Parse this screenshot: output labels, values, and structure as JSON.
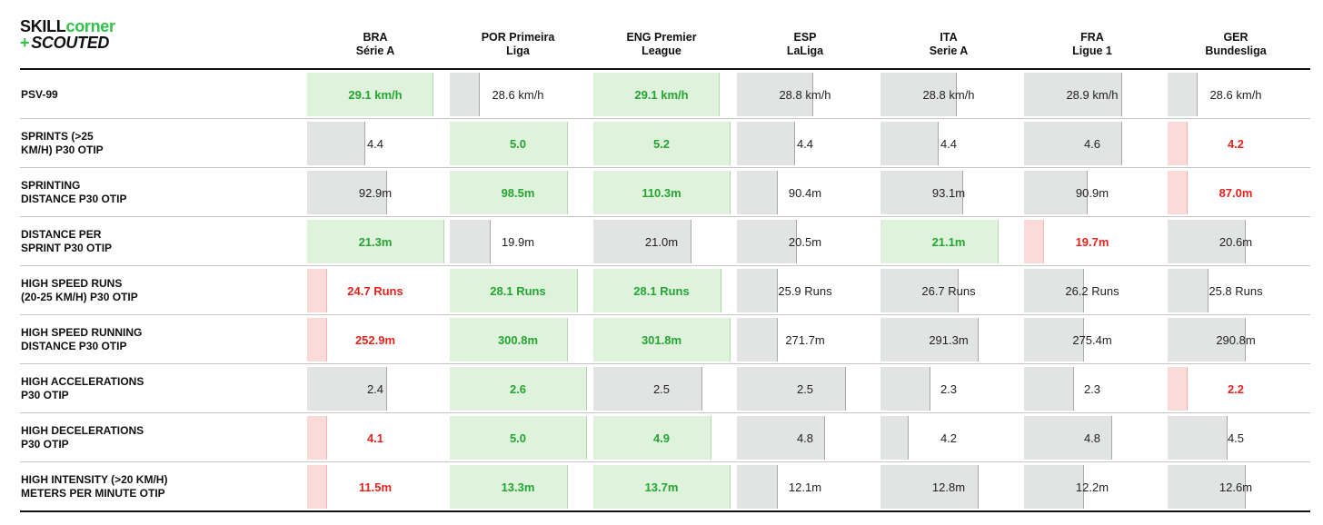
{
  "logo": {
    "line1_a": "SKILL",
    "line1_b": "corner",
    "line2_plus": "+",
    "line2_b": "SCOUTED"
  },
  "columns": [
    {
      "line1": "BRA",
      "line2": "Série A"
    },
    {
      "line1": "POR Primeira",
      "line2": "Liga"
    },
    {
      "line1": "ENG Premier",
      "line2": "League"
    },
    {
      "line1": "ESP",
      "line2": "LaLiga"
    },
    {
      "line1": "ITA",
      "line2": "Serie A"
    },
    {
      "line1": "FRA",
      "line2": "Ligue 1"
    },
    {
      "line1": "GER",
      "line2": "Bundesliga"
    }
  ],
  "colors": {
    "green_text": "#25a532",
    "red_text": "#e3231e",
    "green_fill": "#def2dc",
    "red_fill": "#fbdada",
    "grey_fill": "#e2e3e3"
  },
  "chart_data": {
    "type": "table",
    "note_legend": "green = highest values, red = lowest value, grey = others",
    "rows": [
      {
        "label_lines": [
          "PSV-99"
        ],
        "cells": [
          {
            "text": "29.1 km/h",
            "value": 29.1,
            "level": 0.92,
            "status": "green"
          },
          {
            "text": "28.6 km/h",
            "value": 28.6,
            "level": 0.21,
            "status": "grey"
          },
          {
            "text": "29.1 km/h",
            "value": 29.1,
            "level": 0.92,
            "status": "green"
          },
          {
            "text": "28.8 km/h",
            "value": 28.8,
            "level": 0.55,
            "status": "grey"
          },
          {
            "text": "28.8 km/h",
            "value": 28.8,
            "level": 0.55,
            "status": "grey"
          },
          {
            "text": "28.9 km/h",
            "value": 28.9,
            "level": 0.71,
            "status": "grey"
          },
          {
            "text": "28.6 km/h",
            "value": 28.6,
            "level": 0.21,
            "status": "grey"
          }
        ]
      },
      {
        "label_lines": [
          "SPRINTS (>25",
          "KM/H) P30 OTIP"
        ],
        "cells": [
          {
            "text": "4.4",
            "value": 4.4,
            "level": 0.42,
            "status": "grey"
          },
          {
            "text": "5.0",
            "value": 5.0,
            "level": 0.86,
            "status": "green"
          },
          {
            "text": "5.2",
            "value": 5.2,
            "level": 1.0,
            "status": "green"
          },
          {
            "text": "4.4",
            "value": 4.4,
            "level": 0.42,
            "status": "grey"
          },
          {
            "text": "4.4",
            "value": 4.4,
            "level": 0.42,
            "status": "grey"
          },
          {
            "text": "4.6",
            "value": 4.6,
            "level": 0.71,
            "status": "grey"
          },
          {
            "text": "4.2",
            "value": 4.2,
            "level": 0.14,
            "status": "red"
          }
        ]
      },
      {
        "label_lines": [
          "SPRINTING",
          "DISTANCE P30 OTIP"
        ],
        "cells": [
          {
            "text": "92.9m",
            "value": 92.9,
            "level": 0.58,
            "status": "grey"
          },
          {
            "text": "98.5m",
            "value": 98.5,
            "level": 0.86,
            "status": "green"
          },
          {
            "text": "110.3m",
            "value": 110.3,
            "level": 1.0,
            "status": "green"
          },
          {
            "text": "90.4m",
            "value": 90.4,
            "level": 0.29,
            "status": "grey"
          },
          {
            "text": "93.1m",
            "value": 93.1,
            "level": 0.6,
            "status": "grey"
          },
          {
            "text": "90.9m",
            "value": 90.9,
            "level": 0.46,
            "status": "grey"
          },
          {
            "text": "87.0m",
            "value": 87.0,
            "level": 0.14,
            "status": "red"
          }
        ]
      },
      {
        "label_lines": [
          "DISTANCE PER",
          "SPRINT P30 OTIP"
        ],
        "cells": [
          {
            "text": "21.3m",
            "value": 21.3,
            "level": 1.0,
            "status": "green"
          },
          {
            "text": "19.9m",
            "value": 19.9,
            "level": 0.29,
            "status": "grey"
          },
          {
            "text": "21.0m",
            "value": 21.0,
            "level": 0.71,
            "status": "grey"
          },
          {
            "text": "20.5m",
            "value": 20.5,
            "level": 0.43,
            "status": "grey"
          },
          {
            "text": "21.1m",
            "value": 21.1,
            "level": 0.86,
            "status": "green"
          },
          {
            "text": "19.7m",
            "value": 19.7,
            "level": 0.14,
            "status": "red"
          },
          {
            "text": "20.6m",
            "value": 20.6,
            "level": 0.57,
            "status": "grey"
          }
        ]
      },
      {
        "label_lines": [
          "HIGH SPEED RUNS",
          "(20-25 KM/H) P30 OTIP"
        ],
        "cells": [
          {
            "text": "24.7 Runs",
            "value": 24.7,
            "level": 0.14,
            "status": "red"
          },
          {
            "text": "28.1 Runs",
            "value": 28.1,
            "level": 0.93,
            "status": "green"
          },
          {
            "text": "28.1 Runs",
            "value": 28.1,
            "level": 0.93,
            "status": "green"
          },
          {
            "text": "25.9 Runs",
            "value": 25.9,
            "level": 0.29,
            "status": "grey"
          },
          {
            "text": "26.7 Runs",
            "value": 26.7,
            "level": 0.57,
            "status": "grey"
          },
          {
            "text": "26.2 Runs",
            "value": 26.2,
            "level": 0.43,
            "status": "grey"
          },
          {
            "text": "25.8 Runs",
            "value": 25.8,
            "level": 0.29,
            "status": "grey"
          }
        ]
      },
      {
        "label_lines": [
          "HIGH SPEED RUNNING",
          "DISTANCE P30 OTIP"
        ],
        "cells": [
          {
            "text": "252.9m",
            "value": 252.9,
            "level": 0.14,
            "status": "red"
          },
          {
            "text": "300.8m",
            "value": 300.8,
            "level": 0.86,
            "status": "green"
          },
          {
            "text": "301.8m",
            "value": 301.8,
            "level": 1.0,
            "status": "green"
          },
          {
            "text": "271.7m",
            "value": 271.7,
            "level": 0.29,
            "status": "grey"
          },
          {
            "text": "291.3m",
            "value": 291.3,
            "level": 0.71,
            "status": "grey"
          },
          {
            "text": "275.4m",
            "value": 275.4,
            "level": 0.43,
            "status": "grey"
          },
          {
            "text": "290.8m",
            "value": 290.8,
            "level": 0.57,
            "status": "grey"
          }
        ]
      },
      {
        "label_lines": [
          "HIGH ACCELERATIONS",
          "P30 OTIP"
        ],
        "cells": [
          {
            "text": "2.4",
            "value": 2.4,
            "level": 0.58,
            "status": "grey"
          },
          {
            "text": "2.6",
            "value": 2.6,
            "level": 1.0,
            "status": "green"
          },
          {
            "text": "2.5",
            "value": 2.5,
            "level": 0.79,
            "status": "grey"
          },
          {
            "text": "2.5",
            "value": 2.5,
            "level": 0.79,
            "status": "grey"
          },
          {
            "text": "2.3",
            "value": 2.3,
            "level": 0.36,
            "status": "grey"
          },
          {
            "text": "2.3",
            "value": 2.3,
            "level": 0.36,
            "status": "grey"
          },
          {
            "text": "2.2",
            "value": 2.2,
            "level": 0.14,
            "status": "red"
          }
        ]
      },
      {
        "label_lines": [
          "HIGH DECELERATIONS",
          "P30 OTIP"
        ],
        "cells": [
          {
            "text": "4.1",
            "value": 4.1,
            "level": 0.14,
            "status": "red"
          },
          {
            "text": "5.0",
            "value": 5.0,
            "level": 1.0,
            "status": "green"
          },
          {
            "text": "4.9",
            "value": 4.9,
            "level": 0.86,
            "status": "green"
          },
          {
            "text": "4.8",
            "value": 4.8,
            "level": 0.64,
            "status": "grey"
          },
          {
            "text": "4.2",
            "value": 4.2,
            "level": 0.2,
            "status": "grey"
          },
          {
            "text": "4.8",
            "value": 4.8,
            "level": 0.64,
            "status": "grey"
          },
          {
            "text": "4.5",
            "value": 4.5,
            "level": 0.43,
            "status": "grey"
          }
        ]
      },
      {
        "label_lines": [
          "HIGH INTENSITY (>20 KM/H)",
          "METERS PER MINUTE OTIP"
        ],
        "cells": [
          {
            "text": "11.5m",
            "value": 11.5,
            "level": 0.14,
            "status": "red"
          },
          {
            "text": "13.3m",
            "value": 13.3,
            "level": 0.86,
            "status": "green"
          },
          {
            "text": "13.7m",
            "value": 13.7,
            "level": 1.0,
            "status": "green"
          },
          {
            "text": "12.1m",
            "value": 12.1,
            "level": 0.29,
            "status": "grey"
          },
          {
            "text": "12.8m",
            "value": 12.8,
            "level": 0.71,
            "status": "grey"
          },
          {
            "text": "12.2m",
            "value": 12.2,
            "level": 0.43,
            "status": "grey"
          },
          {
            "text": "12.6m",
            "value": 12.6,
            "level": 0.57,
            "status": "grey"
          }
        ]
      }
    ]
  }
}
